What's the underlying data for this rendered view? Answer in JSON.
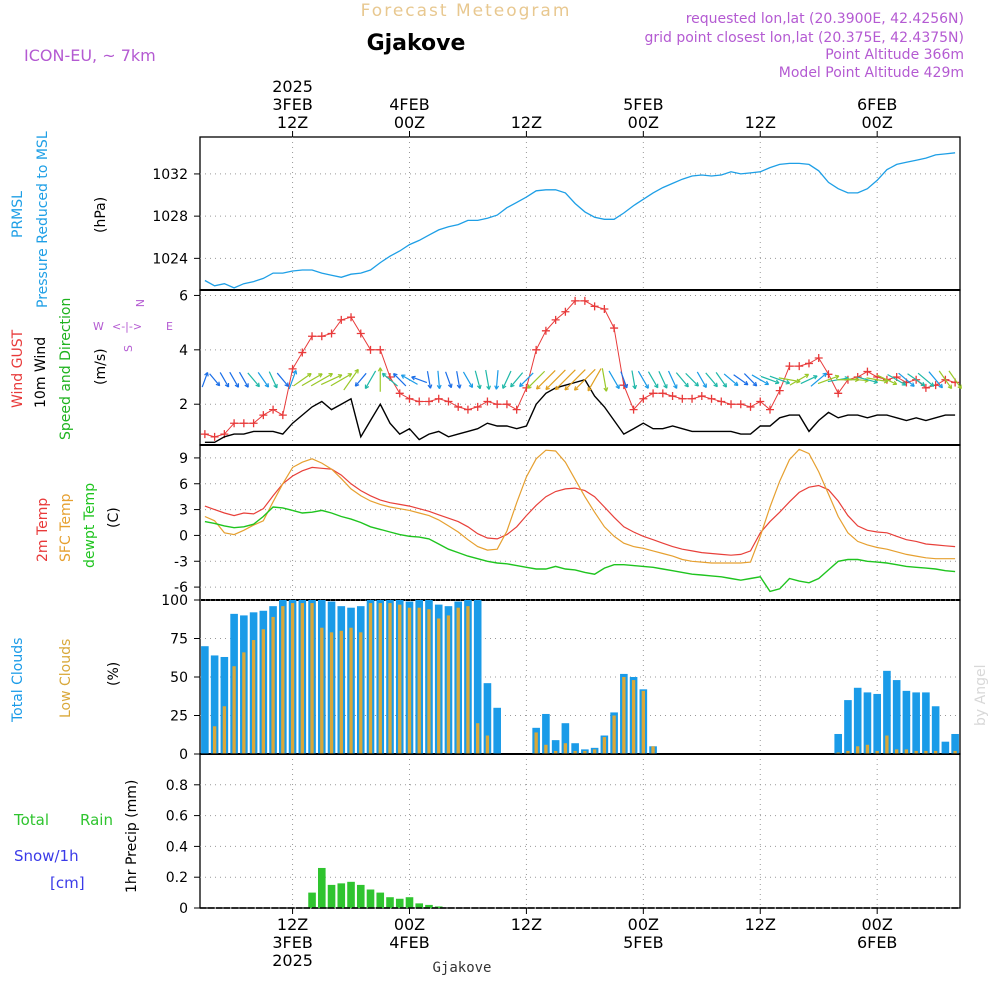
{
  "header": {
    "product": "Forecast Meteogram",
    "location": "Gjakove",
    "model": "ICON-EU, ~ 7km",
    "requested": "requested lon,lat (20.3900E, 42.4256N)",
    "gridpoint": "grid point closest lon,lat (20.375E, 42.4375N)",
    "point_alt": "Point Altitude 366m",
    "model_alt": "Model Point Altitude 429m",
    "watermark": "by Angel",
    "footer_location": "Gjakove"
  },
  "colors": {
    "pressure": "#1e9fe6",
    "gust": "#e83a3a",
    "wind": "#000000",
    "wind_label": "#1fb31f",
    "temp": "#e8403a",
    "sfc": "#e6a030",
    "dew": "#1fc41f",
    "total_clouds": "#1a9be8",
    "low_clouds": "#d9a83a",
    "rain": "#2fc42f",
    "snow": "#3a3ae8",
    "purple": "#b45ad2"
  },
  "time_axis": {
    "top_labels": [
      {
        "line1": "2025",
        "line2": "3FEB",
        "line3": "12Z",
        "step": 9
      },
      {
        "line1": "",
        "line2": "4FEB",
        "line3": "00Z",
        "step": 21
      },
      {
        "line1": "",
        "line2": "",
        "line3": "12Z",
        "step": 33
      },
      {
        "line1": "",
        "line2": "5FEB",
        "line3": "00Z",
        "step": 45
      },
      {
        "line1": "",
        "line2": "",
        "line3": "12Z",
        "step": 57
      },
      {
        "line1": "",
        "line2": "6FEB",
        "line3": "00Z",
        "step": 69
      }
    ],
    "bottom_labels": [
      {
        "line1": "12Z",
        "line2": "3FEB",
        "line3": "2025",
        "step": 9
      },
      {
        "line1": "00Z",
        "line2": "4FEB",
        "line3": "",
        "step": 21
      },
      {
        "line1": "12Z",
        "line2": "",
        "line3": "",
        "step": 33
      },
      {
        "line1": "00Z",
        "line2": "5FEB",
        "line3": "",
        "step": 45
      },
      {
        "line1": "12Z",
        "line2": "",
        "line3": "",
        "step": 57
      },
      {
        "line1": "00Z",
        "line2": "6FEB",
        "line3": "",
        "step": 69
      }
    ]
  },
  "panels": {
    "pressure": {
      "labels": [
        "PRMSL",
        "Pressure Reduced to MSL",
        "(hPa)"
      ],
      "yticks": [
        "1024",
        "1028",
        "1032"
      ]
    },
    "wind": {
      "labels": [
        "Wind GUST",
        "10m Wind",
        "Speed and Direction",
        "(m/s)"
      ],
      "yticks": [
        "2",
        "4",
        "6"
      ],
      "compass": {
        "n": "N",
        "s": "S",
        "e": "E",
        "w": "W"
      }
    },
    "temp": {
      "labels": [
        "2m Temp",
        "SFC Temp",
        "dewpt Temp",
        "(C)"
      ],
      "yticks": [
        "-6",
        "-3",
        "0",
        "3",
        "6",
        "9"
      ]
    },
    "clouds": {
      "labels": [
        "Total Clouds",
        "Low Clouds",
        "(%)"
      ],
      "yticks": [
        "0",
        "25",
        "50",
        "75",
        "100"
      ]
    },
    "precip": {
      "labels": [
        "Total",
        "Rain",
        "Snow/1h",
        "[cm]",
        "1hr Precip (mm)"
      ],
      "yticks": [
        "0",
        "0.2",
        "0.4",
        "0.6",
        "0.8"
      ]
    }
  },
  "chart_data": [
    {
      "type": "line",
      "panel": "pressure",
      "ylim": [
        1021,
        1035.5
      ],
      "x_steps": 78,
      "series": [
        {
          "name": "PRMSL",
          "values": [
            1021.9,
            1021.4,
            1021.6,
            1021.2,
            1021.6,
            1021.8,
            1022.1,
            1022.6,
            1022.6,
            1022.8,
            1022.9,
            1022.9,
            1022.6,
            1022.4,
            1022.2,
            1022.5,
            1022.6,
            1022.9,
            1023.6,
            1024.2,
            1024.7,
            1025.3,
            1025.7,
            1026.2,
            1026.7,
            1027.0,
            1027.2,
            1027.6,
            1027.6,
            1027.8,
            1028.1,
            1028.8,
            1029.3,
            1029.8,
            1030.4,
            1030.5,
            1030.5,
            1030.2,
            1029.2,
            1028.4,
            1027.9,
            1027.7,
            1027.7,
            1028.3,
            1029.0,
            1029.6,
            1030.2,
            1030.7,
            1031.1,
            1031.5,
            1031.8,
            1031.9,
            1031.8,
            1031.9,
            1032.2,
            1032.0,
            1032.1,
            1032.2,
            1032.6,
            1032.9,
            1033.0,
            1033.0,
            1032.9,
            1032.3,
            1031.2,
            1030.6,
            1030.2,
            1030.2,
            1030.6,
            1031.4,
            1032.4,
            1032.9,
            1033.1,
            1033.3,
            1033.5,
            1033.8,
            1033.9,
            1034.0
          ]
        }
      ]
    },
    {
      "type": "line",
      "panel": "wind",
      "ylim": [
        0.5,
        6.2
      ],
      "x_steps": 78,
      "series": [
        {
          "name": "Wind GUST",
          "values": [
            0.9,
            0.8,
            0.9,
            1.3,
            1.3,
            1.3,
            1.6,
            1.8,
            1.6,
            3.3,
            3.9,
            4.5,
            4.5,
            4.6,
            5.1,
            5.2,
            4.6,
            4.0,
            4.0,
            3.0,
            2.4,
            2.2,
            2.1,
            2.1,
            2.2,
            2.1,
            1.9,
            1.8,
            1.9,
            2.1,
            2.0,
            2.0,
            1.8,
            2.6,
            4.0,
            4.7,
            5.1,
            5.4,
            5.8,
            5.8,
            5.6,
            5.5,
            4.8,
            2.7,
            1.8,
            2.2,
            2.4,
            2.4,
            2.3,
            2.2,
            2.2,
            2.3,
            2.2,
            2.1,
            2.0,
            2.0,
            1.9,
            2.1,
            1.8,
            2.5,
            3.4,
            3.4,
            3.5,
            3.7,
            3.1,
            2.4,
            2.9,
            3.0,
            3.2,
            3.0,
            2.9,
            3.0,
            2.8,
            2.9,
            2.6,
            2.7,
            2.9,
            2.8
          ]
        },
        {
          "name": "10m Wind",
          "values": [
            0.6,
            0.6,
            0.8,
            0.9,
            0.9,
            1.0,
            1.0,
            1.0,
            0.9,
            1.3,
            1.6,
            1.9,
            2.1,
            1.8,
            2.0,
            2.2,
            0.8,
            1.4,
            2.0,
            1.3,
            0.9,
            1.1,
            0.7,
            0.9,
            1.0,
            0.8,
            0.9,
            1.0,
            1.1,
            1.3,
            1.2,
            1.2,
            1.1,
            1.2,
            2.0,
            2.4,
            2.6,
            2.7,
            2.8,
            2.9,
            2.3,
            1.9,
            1.4,
            0.9,
            1.1,
            1.3,
            1.1,
            1.1,
            1.2,
            1.1,
            1.0,
            1.0,
            1.0,
            1.0,
            1.0,
            0.9,
            0.9,
            1.2,
            1.2,
            1.5,
            1.6,
            1.6,
            1.0,
            1.4,
            1.7,
            1.5,
            1.6,
            1.6,
            1.5,
            1.6,
            1.6,
            1.5,
            1.4,
            1.5,
            1.4,
            1.5,
            1.6,
            1.6
          ]
        }
      ]
    },
    {
      "type": "line",
      "panel": "temp",
      "ylim": [
        -7.5,
        10.5
      ],
      "x_steps": 78,
      "series": [
        {
          "name": "2m Temp",
          "values": [
            3.4,
            3.0,
            2.6,
            2.3,
            2.6,
            2.5,
            3.1,
            4.6,
            6.0,
            6.9,
            7.5,
            7.9,
            7.8,
            7.7,
            7.0,
            6.0,
            5.2,
            4.6,
            4.1,
            3.8,
            3.6,
            3.4,
            3.1,
            2.8,
            2.4,
            2.0,
            1.6,
            1.0,
            0.2,
            -0.3,
            -0.4,
            0.1,
            1.0,
            2.3,
            3.5,
            4.5,
            5.1,
            5.4,
            5.5,
            5.2,
            4.5,
            3.3,
            2.1,
            1.0,
            0.4,
            -0.1,
            -0.5,
            -0.9,
            -1.3,
            -1.6,
            -1.8,
            -2.0,
            -2.1,
            -2.2,
            -2.3,
            -2.2,
            -1.8,
            0.3,
            1.6,
            2.7,
            3.9,
            5.0,
            5.6,
            5.8,
            5.3,
            4.0,
            2.3,
            1.1,
            0.6,
            0.4,
            0.3,
            -0.1,
            -0.5,
            -0.7,
            -1.0,
            -1.1,
            -1.2,
            -1.3
          ]
        },
        {
          "name": "SFC Temp",
          "values": [
            2.2,
            1.7,
            0.3,
            0.1,
            0.6,
            1.2,
            1.7,
            3.9,
            6.0,
            7.9,
            8.5,
            8.9,
            8.4,
            7.7,
            6.6,
            5.4,
            4.6,
            4.0,
            3.6,
            3.3,
            3.1,
            2.9,
            2.6,
            2.3,
            1.8,
            1.1,
            0.4,
            -0.5,
            -1.3,
            -1.7,
            -1.6,
            0.5,
            3.8,
            6.8,
            8.9,
            9.9,
            9.8,
            8.5,
            6.5,
            4.5,
            2.7,
            1.0,
            -0.1,
            -0.9,
            -1.3,
            -1.5,
            -1.8,
            -2.1,
            -2.4,
            -2.8,
            -3.0,
            -3.1,
            -3.2,
            -3.2,
            -3.2,
            -3.2,
            -3.1,
            -0.1,
            3.3,
            6.3,
            8.8,
            10.0,
            9.5,
            7.4,
            4.8,
            2.2,
            0.3,
            -0.7,
            -1.1,
            -1.4,
            -1.6,
            -1.9,
            -2.2,
            -2.4,
            -2.6,
            -2.7,
            -2.7,
            -2.7
          ]
        },
        {
          "name": "dewpt Temp",
          "values": [
            1.6,
            1.4,
            1.1,
            0.9,
            1.0,
            1.3,
            2.2,
            3.3,
            3.2,
            2.9,
            2.6,
            2.7,
            2.9,
            2.6,
            2.2,
            1.9,
            1.5,
            1.0,
            0.7,
            0.4,
            0.1,
            -0.1,
            -0.2,
            -0.4,
            -1.0,
            -1.6,
            -2.0,
            -2.4,
            -2.7,
            -3.0,
            -3.2,
            -3.3,
            -3.5,
            -3.7,
            -3.9,
            -3.9,
            -3.6,
            -3.9,
            -4.0,
            -4.3,
            -4.5,
            -3.8,
            -3.4,
            -3.4,
            -3.5,
            -3.6,
            -3.7,
            -3.9,
            -4.1,
            -4.3,
            -4.5,
            -4.6,
            -4.7,
            -4.8,
            -5.0,
            -5.2,
            -5.0,
            -4.8,
            -6.5,
            -6.2,
            -5.0,
            -5.3,
            -5.5,
            -5.0,
            -4.0,
            -3.0,
            -2.8,
            -2.8,
            -3.0,
            -3.1,
            -3.2,
            -3.4,
            -3.6,
            -3.7,
            -3.8,
            -3.9,
            -4.1,
            -4.2
          ]
        }
      ]
    },
    {
      "type": "bar",
      "panel": "clouds",
      "ylim": [
        0,
        100
      ],
      "x_steps": 78,
      "series": [
        {
          "name": "Total Clouds",
          "values": [
            70,
            64,
            63,
            91,
            90,
            92,
            93,
            96,
            100,
            100,
            100,
            100,
            100,
            99,
            96,
            95,
            96,
            100,
            100,
            100,
            100,
            99,
            100,
            100,
            97,
            96,
            99,
            100,
            100,
            46,
            30,
            0,
            0,
            0,
            17,
            26,
            9,
            20,
            7,
            3,
            4,
            12,
            27,
            52,
            50,
            42,
            5,
            0,
            0,
            0,
            0,
            0,
            0,
            0,
            0,
            0,
            0,
            0,
            0,
            0,
            0,
            0,
            0,
            0,
            0,
            13,
            35,
            43,
            40,
            39,
            54,
            48,
            41,
            40,
            40,
            31,
            8,
            13
          ]
        },
        {
          "name": "Low Clouds",
          "values": [
            0,
            18,
            31,
            57,
            66,
            74,
            81,
            89,
            96,
            98,
            98,
            98,
            82,
            79,
            80,
            82,
            79,
            98,
            98,
            98,
            97,
            95,
            95,
            94,
            88,
            90,
            95,
            96,
            20,
            12,
            0,
            0,
            0,
            0,
            14,
            6,
            2,
            7,
            2,
            2,
            3,
            11,
            25,
            50,
            48,
            41,
            5,
            0,
            0,
            0,
            0,
            0,
            0,
            0,
            0,
            0,
            0,
            0,
            0,
            0,
            0,
            0,
            0,
            0,
            0,
            1,
            2,
            5,
            6,
            2,
            12,
            3,
            3,
            2,
            2,
            2,
            0,
            2
          ]
        }
      ]
    },
    {
      "type": "bar",
      "panel": "precip",
      "ylim": [
        0,
        1.0
      ],
      "x_steps": 78,
      "series": [
        {
          "name": "Total Rain",
          "values": [
            0,
            0,
            0,
            0,
            0,
            0,
            0,
            0,
            0,
            0,
            0,
            0.1,
            0.26,
            0.15,
            0.16,
            0.17,
            0.15,
            0.12,
            0.1,
            0.07,
            0.06,
            0.07,
            0.03,
            0.02,
            0.01,
            0,
            0,
            0,
            0,
            0,
            0,
            0,
            0,
            0,
            0,
            0,
            0,
            0,
            0,
            0,
            0,
            0,
            0,
            0,
            0,
            0,
            0,
            0,
            0,
            0,
            0,
            0,
            0,
            0,
            0,
            0,
            0,
            0,
            0,
            0,
            0,
            0,
            0,
            0,
            0,
            0,
            0,
            0,
            0,
            0,
            0,
            0,
            0,
            0,
            0,
            0,
            0,
            0
          ]
        }
      ]
    },
    {
      "type": "vector",
      "panel": "wind-direction",
      "x_steps": 78,
      "directions_deg": [
        200,
        320,
        330,
        330,
        330,
        320,
        325,
        335,
        320,
        200,
        235,
        240,
        240,
        245,
        240,
        215,
        40,
        30,
        180,
        130,
        135,
        120,
        110,
        350,
        355,
        340,
        350,
        330,
        345,
        350,
        5,
        25,
        40,
        45,
        45,
        45,
        45,
        45,
        45,
        45,
        30,
        350,
        330,
        340,
        350,
        330,
        330,
        335,
        335,
        320,
        315,
        330,
        320,
        325,
        310,
        305,
        315,
        300,
        290,
        290,
        280,
        240,
        245,
        230,
        250,
        260,
        270,
        275,
        285,
        280,
        295,
        300,
        310,
        305,
        310,
        320,
        325,
        325
      ]
    }
  ]
}
